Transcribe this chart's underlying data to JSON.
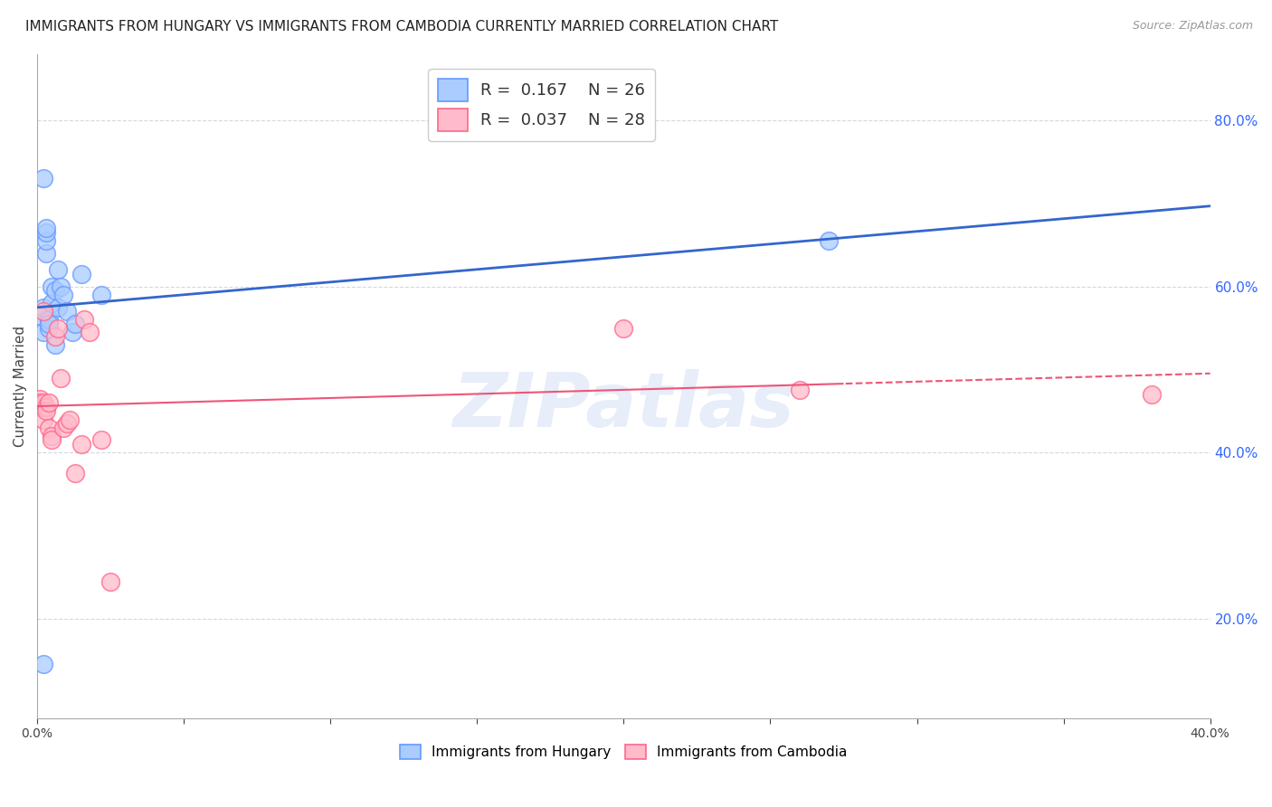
{
  "title": "IMMIGRANTS FROM HUNGARY VS IMMIGRANTS FROM CAMBODIA CURRENTLY MARRIED CORRELATION CHART",
  "source": "Source: ZipAtlas.com",
  "ylabel": "Currently Married",
  "r_hungary": 0.167,
  "n_hungary": 26,
  "r_cambodia": 0.037,
  "n_cambodia": 28,
  "hungary_color": "#6699ff",
  "cambodia_color": "#ff6688",
  "hungary_line_color": "#3366cc",
  "cambodia_line_color": "#ee5577",
  "xmin": 0.0,
  "xmax": 0.4,
  "ymin": 0.08,
  "ymax": 0.88,
  "watermark_text": "ZIPatlas",
  "hungary_x": [
    0.001,
    0.002,
    0.002,
    0.003,
    0.003,
    0.003,
    0.004,
    0.004,
    0.004,
    0.005,
    0.005,
    0.006,
    0.006,
    0.007,
    0.007,
    0.008,
    0.009,
    0.01,
    0.012,
    0.013,
    0.015,
    0.022,
    0.002,
    0.27,
    0.002,
    0.003
  ],
  "hungary_y": [
    0.565,
    0.545,
    0.575,
    0.64,
    0.655,
    0.665,
    0.55,
    0.56,
    0.555,
    0.58,
    0.6,
    0.595,
    0.53,
    0.62,
    0.575,
    0.6,
    0.59,
    0.57,
    0.545,
    0.555,
    0.615,
    0.59,
    0.73,
    0.655,
    0.145,
    0.67
  ],
  "cambodia_x": [
    0.001,
    0.001,
    0.001,
    0.002,
    0.002,
    0.002,
    0.003,
    0.003,
    0.004,
    0.004,
    0.005,
    0.005,
    0.006,
    0.007,
    0.008,
    0.009,
    0.01,
    0.011,
    0.013,
    0.015,
    0.016,
    0.018,
    0.022,
    0.025,
    0.2,
    0.26,
    0.002,
    0.38
  ],
  "cambodia_y": [
    0.465,
    0.46,
    0.455,
    0.455,
    0.44,
    0.46,
    0.455,
    0.45,
    0.46,
    0.43,
    0.42,
    0.415,
    0.54,
    0.55,
    0.49,
    0.43,
    0.435,
    0.44,
    0.375,
    0.41,
    0.56,
    0.545,
    0.415,
    0.245,
    0.55,
    0.475,
    0.57,
    0.47
  ]
}
